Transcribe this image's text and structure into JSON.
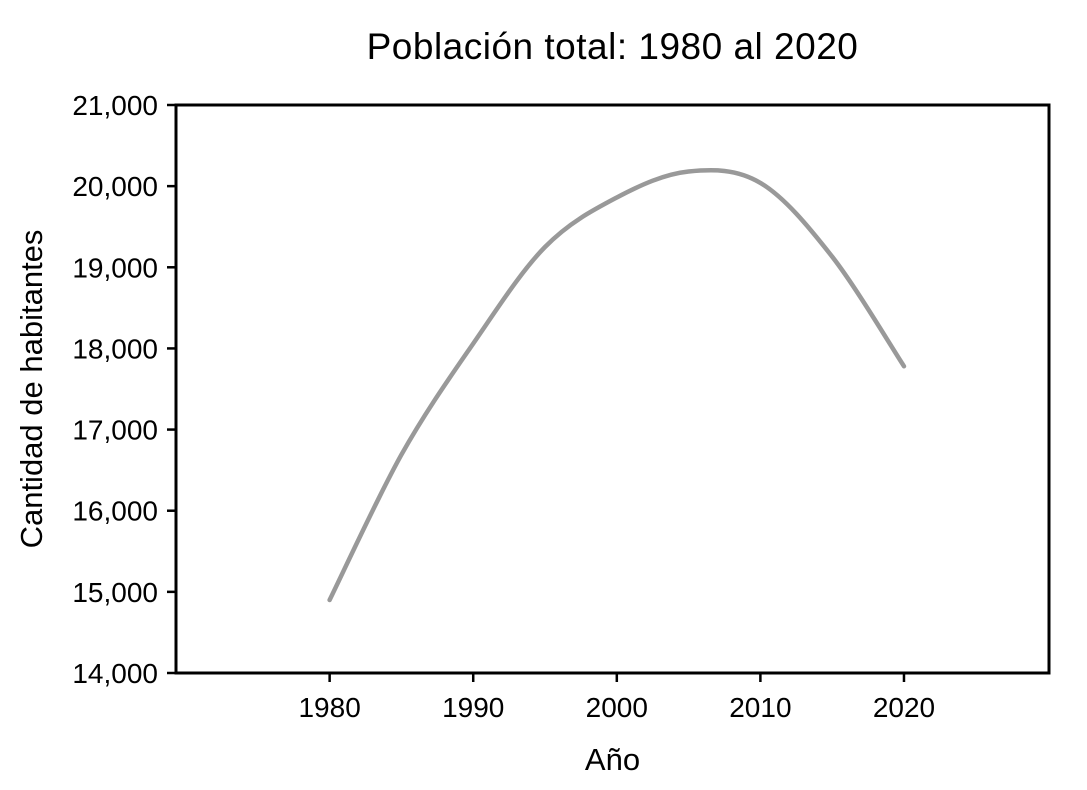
{
  "figure": {
    "background_color": "#ffffff",
    "text_color": "#000000"
  },
  "chart_data": {
    "type": "line",
    "title": "Población total: 1980 al 2020",
    "xlabel": "Año",
    "ylabel": "Cantidad de habitantes",
    "x": [
      1980,
      1985,
      1990,
      1995,
      2000,
      2005,
      2010,
      2015,
      2020
    ],
    "y": [
      14900,
      16690,
      18060,
      19250,
      19860,
      20180,
      20040,
      19130,
      17780
    ],
    "x_ticks": [
      1980,
      1990,
      2000,
      2010,
      2020
    ],
    "x_tick_labels": [
      "1980",
      "1990",
      "2000",
      "2010",
      "2020"
    ],
    "y_ticks": [
      14000,
      15000,
      16000,
      17000,
      18000,
      19000,
      20000,
      21000
    ],
    "y_tick_labels": [
      "14,000",
      "15,000",
      "16,000",
      "17,000",
      "18,000",
      "19,000",
      "20,000",
      "21,000"
    ],
    "xlim": [
      1969.3,
      2030.1
    ],
    "ylim": [
      14000,
      21000
    ],
    "grid": false,
    "legend": "none",
    "line_color": "#999999",
    "line_width": 4.5,
    "axis_color": "#000000",
    "frame": "full-box",
    "tick_direction": "out"
  }
}
